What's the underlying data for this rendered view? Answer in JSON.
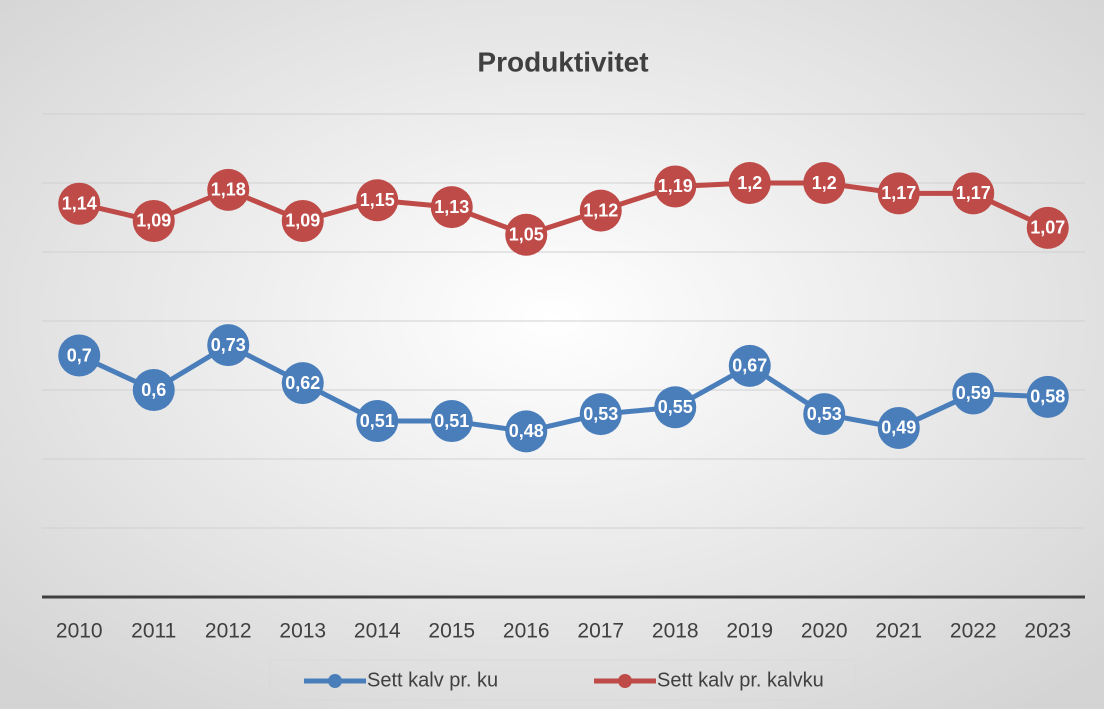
{
  "chart_data": {
    "type": "line",
    "title": "Produktivitet",
    "categories": [
      "2010",
      "2011",
      "2012",
      "2013",
      "2014",
      "2015",
      "2016",
      "2017",
      "2018",
      "2019",
      "2020",
      "2021",
      "2022",
      "2023"
    ],
    "series": [
      {
        "name": "Sett kalv pr. ku",
        "color": "#4a7ebb",
        "values": [
          0.7,
          0.6,
          0.73,
          0.62,
          0.51,
          0.51,
          0.48,
          0.53,
          0.55,
          0.67,
          0.53,
          0.49,
          0.59,
          0.58
        ],
        "value_labels": [
          "0,7",
          "0,6",
          "0,73",
          "0,62",
          "0,51",
          "0,51",
          "0,48",
          "0,53",
          "0,55",
          "0,67",
          "0,53",
          "0,49",
          "0,59",
          "0,58"
        ]
      },
      {
        "name": "Sett kalv pr. kalvku",
        "color": "#be4b48",
        "values": [
          1.14,
          1.09,
          1.18,
          1.09,
          1.15,
          1.13,
          1.05,
          1.12,
          1.19,
          1.2,
          1.2,
          1.17,
          1.17,
          1.07
        ],
        "value_labels": [
          "1,14",
          "1,09",
          "1,18",
          "1,09",
          "1,15",
          "1,13",
          "1,05",
          "1,12",
          "1,19",
          "1,2",
          "1,2",
          "1,17",
          "1,17",
          "1,07"
        ]
      }
    ],
    "ylim": [
      0,
      1.4
    ],
    "yticks": [
      0.2,
      0.4,
      0.6,
      0.8,
      1,
      1.2,
      1.4
    ],
    "grid": true,
    "legend": "bottom"
  }
}
